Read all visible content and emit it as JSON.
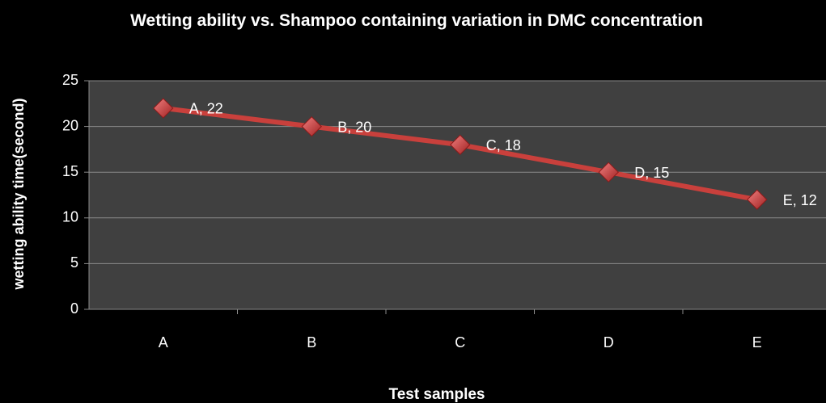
{
  "chart_data": {
    "type": "line",
    "title": "Wetting ability vs. Shampoo containing variation  in DMC concentration",
    "x_label": "Test samples",
    "y_label": "wetting  ability time(second)",
    "categories": [
      "A",
      "B",
      "C",
      "D",
      "E"
    ],
    "series": [
      {
        "name": "Wetting ability",
        "color": "#c9403c",
        "values": [
          22,
          20,
          18,
          15,
          12
        ],
        "value_labels": [
          "A, 22",
          "B, 20",
          "C, 18",
          "D, 15",
          "E, 12"
        ]
      }
    ],
    "ylim": [
      0,
      25
    ],
    "yticks": [
      0,
      5,
      10,
      15,
      20,
      25
    ],
    "grid": true
  }
}
